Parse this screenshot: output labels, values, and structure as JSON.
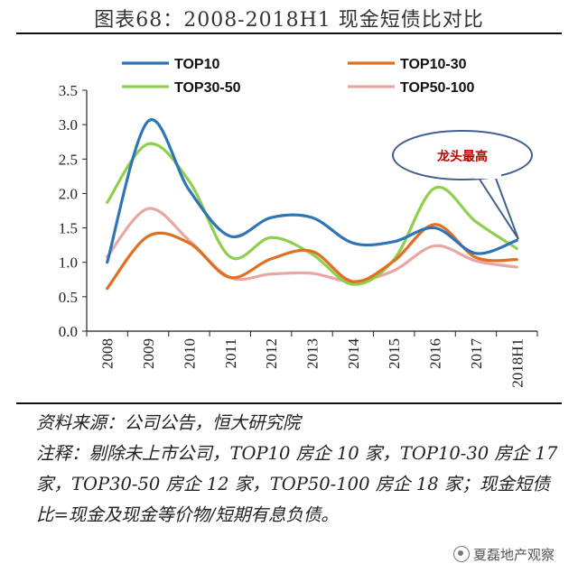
{
  "title": "图表68：2008-2018H1 现金短债比对比",
  "chart_data": {
    "type": "line",
    "categories": [
      "2008",
      "2009",
      "2010",
      "2011",
      "2012",
      "2013",
      "2014",
      "2015",
      "2016",
      "2017",
      "2018H1"
    ],
    "ylim": [
      0,
      3.5
    ],
    "yticks": [
      "0.0",
      "0.5",
      "1.0",
      "1.5",
      "2.0",
      "2.5",
      "3.0",
      "3.5"
    ],
    "legend_position": "top",
    "series": [
      {
        "name": "TOP10",
        "color": "#2e75b6",
        "values": [
          1.0,
          3.05,
          2.05,
          1.38,
          1.65,
          1.65,
          1.28,
          1.3,
          1.5,
          1.13,
          1.32
        ]
      },
      {
        "name": "TOP10-30",
        "color": "#e07020",
        "values": [
          0.62,
          1.38,
          1.28,
          0.78,
          1.05,
          1.16,
          0.72,
          1.02,
          1.55,
          1.07,
          1.04
        ]
      },
      {
        "name": "TOP30-50",
        "color": "#8fcf4f",
        "values": [
          1.87,
          2.72,
          2.18,
          1.08,
          1.36,
          1.12,
          0.68,
          1.04,
          2.08,
          1.59,
          1.2
        ]
      },
      {
        "name": "TOP50-100",
        "color": "#e8a7a2",
        "values": [
          1.08,
          1.78,
          1.32,
          0.78,
          0.83,
          0.84,
          0.72,
          0.88,
          1.24,
          1.02,
          0.93
        ]
      }
    ],
    "annotation": {
      "text": "龙头最高",
      "color": "#c00000"
    }
  },
  "notes": {
    "source": "资料来源：公司公告，恒大研究院",
    "remark": "注释：剔除未上市公司，TOP10 房企 10 家，TOP10-30 房企 17 家，TOP30-50 房企 12 家，TOP50-100 房企 18 家；现金短债比=现金及现金等价物/短期有息负债。"
  },
  "watermark": "夏磊地产观察"
}
